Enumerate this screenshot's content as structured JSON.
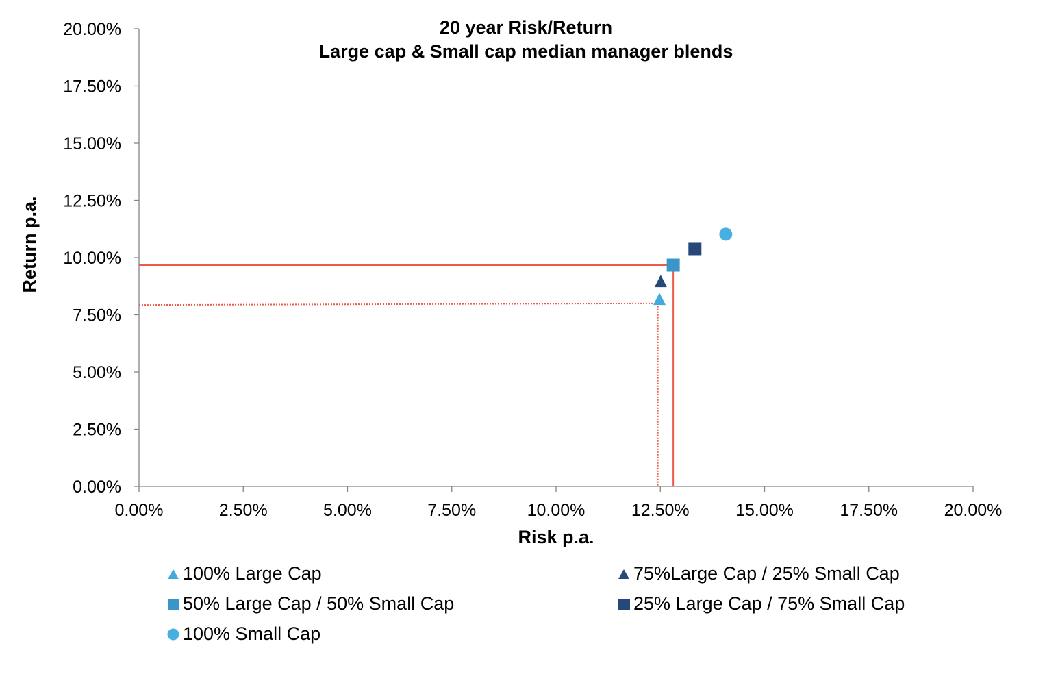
{
  "chart_data": {
    "type": "scatter",
    "title": "20 year Risk/Return",
    "subtitle": "Large cap & Small cap median manager blends",
    "xlabel": "Risk p.a.",
    "ylabel": "Return p.a.",
    "xlim": [
      0,
      20
    ],
    "ylim": [
      0,
      20
    ],
    "x_ticks": [
      "0.00%",
      "2.50%",
      "5.00%",
      "7.50%",
      "10.00%",
      "12.50%",
      "15.00%",
      "17.50%",
      "20.00%"
    ],
    "y_ticks": [
      "0.00%",
      "2.50%",
      "5.00%",
      "7.50%",
      "10.00%",
      "12.50%",
      "15.00%",
      "17.50%",
      "20.00%"
    ],
    "grid": false,
    "legend_position": "bottom",
    "series": [
      {
        "name": "100% Large Cap",
        "marker": "triangle",
        "color": "#41ABDD",
        "x": 12.48,
        "y": 8.14
      },
      {
        "name": "75%Large Cap / 25% Small Cap",
        "marker": "triangle",
        "color": "#254A78",
        "x": 12.51,
        "y": 8.92
      },
      {
        "name": "50% Large Cap / 50% Small Cap",
        "marker": "square",
        "color": "#3A96C8",
        "x": 12.81,
        "y": 9.67
      },
      {
        "name": "25% Large Cap / 75% Small Cap",
        "marker": "square",
        "color": "#254878",
        "x": 13.33,
        "y": 10.39
      },
      {
        "name": "100% Small Cap",
        "marker": "circle",
        "color": "#47B0E3",
        "x": 14.07,
        "y": 11.02
      }
    ],
    "reference_lines": [
      {
        "name": "50/50 blend reference",
        "style": "solid",
        "color": "#EE5A48",
        "x": 12.81,
        "y": 9.67
      },
      {
        "name": "100% Large Cap reference",
        "style": "dotted",
        "color": "#EE5A48",
        "x": 12.44,
        "y": 8.0,
        "y_at_axis": 7.93
      }
    ]
  }
}
